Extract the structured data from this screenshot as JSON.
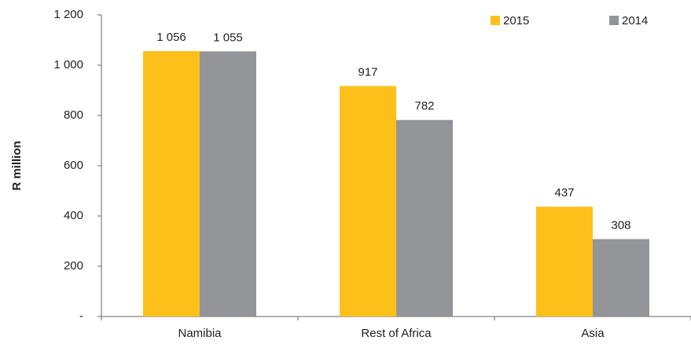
{
  "chart_data": {
    "type": "bar",
    "y_label": "R million",
    "categories": [
      "Namibia",
      "Rest of Africa",
      "Asia"
    ],
    "series": [
      {
        "name": "2015",
        "color": "#fdc01b",
        "values": [
          1056,
          917,
          437
        ],
        "value_labels": [
          "1 056",
          "917",
          "437"
        ]
      },
      {
        "name": "2014",
        "color": "#939598",
        "values": [
          1055,
          782,
          308
        ],
        "value_labels": [
          "1 055",
          "782",
          "308"
        ]
      }
    ],
    "ylim": [
      0,
      1200
    ],
    "yticks": [
      {
        "value": 0,
        "label": "-"
      },
      200,
      400,
      600,
      800,
      {
        "value": 1000,
        "label": "1 000"
      },
      {
        "value": 1200,
        "label": "1 200"
      }
    ],
    "grid": false,
    "legend": "top-right"
  }
}
